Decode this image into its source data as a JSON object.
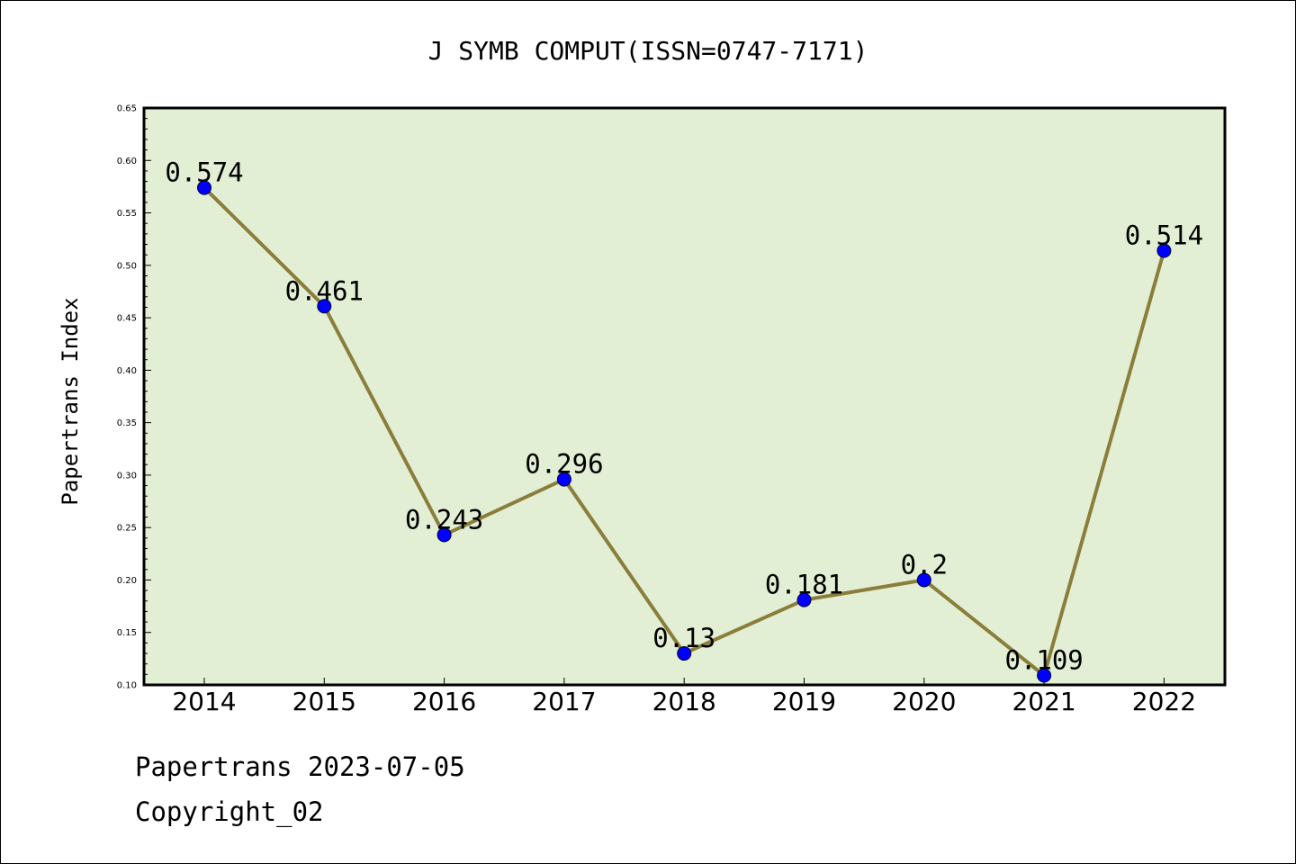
{
  "chart_data": {
    "type": "line",
    "title": "J SYMB COMPUT(ISSN=0747-7171)",
    "xlabel": "",
    "ylabel": "Papertrans Index",
    "categories": [
      "2014",
      "2015",
      "2016",
      "2017",
      "2018",
      "2019",
      "2020",
      "2021",
      "2022"
    ],
    "values": [
      0.574,
      0.461,
      0.243,
      0.296,
      0.13,
      0.181,
      0.2,
      0.109,
      0.514
    ],
    "data_labels": [
      "0.574",
      "0.461",
      "0.243",
      "0.296",
      "0.13",
      "0.181",
      "0.2",
      "0.109",
      "0.514"
    ],
    "ylim": [
      0.1,
      0.65
    ],
    "yticks": [
      "0.10",
      "0.15",
      "0.20",
      "0.25",
      "0.30",
      "0.35",
      "0.40",
      "0.45",
      "0.50",
      "0.55",
      "0.60",
      "0.65"
    ],
    "grid": false,
    "colors": {
      "plot_background": "#e2efd5",
      "line": "#8b7d3a",
      "marker": "#0000ff"
    }
  },
  "footer": {
    "date_line": "Papertrans 2023-07-05",
    "copyright": "Copyright_02"
  }
}
